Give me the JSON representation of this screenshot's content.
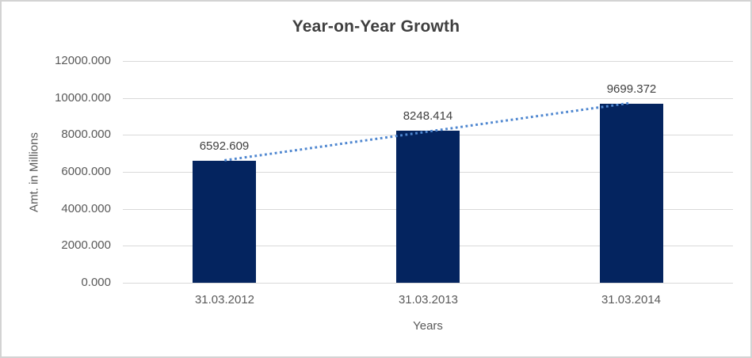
{
  "chart_data": {
    "type": "bar",
    "title": "Year-on-Year Growth",
    "xlabel": "Years",
    "ylabel": "Amt. in Millions",
    "categories": [
      "31.03.2012",
      "31.03.2013",
      "31.03.2014"
    ],
    "values": [
      6592.609,
      8248.414,
      9699.372
    ],
    "data_labels": [
      "6592.609",
      "8248.414",
      "9699.372"
    ],
    "ylim": [
      0,
      12000
    ],
    "ytick_values": [
      0,
      2000,
      4000,
      6000,
      8000,
      10000,
      12000
    ],
    "ytick_labels": [
      "0.000",
      "2000.000",
      "4000.000",
      "6000.000",
      "8000.000",
      "10000.000",
      "12000.000"
    ],
    "grid": true,
    "legend": "none",
    "trendline": {
      "type": "linear",
      "style": "dotted"
    },
    "colors": {
      "bar": "#04245f",
      "trendline": "#4f87d0",
      "gridline": "#d9d9d9",
      "title_text": "#3f3f3f",
      "axis_text": "#595959",
      "data_label_text": "#404040",
      "frame_border": "#d3d3d3",
      "background": "#ffffff"
    }
  }
}
